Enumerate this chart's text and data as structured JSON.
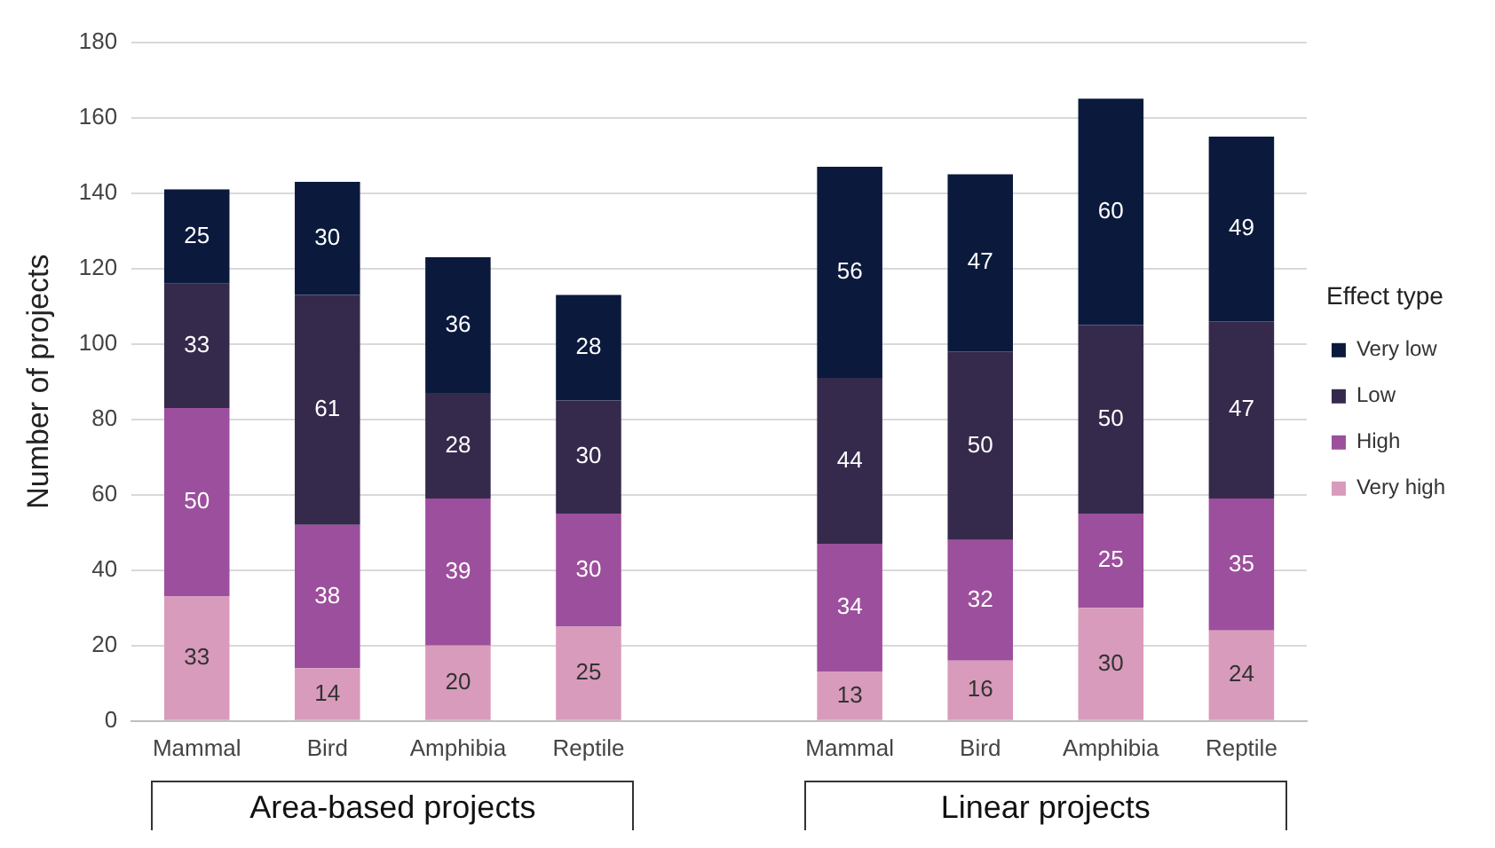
{
  "chart_data": {
    "type": "bar",
    "stacked": true,
    "ylabel": "Number of projects",
    "legend_title": "Effect type",
    "legend": "right",
    "grid": "y",
    "data_labels": true,
    "categories": [
      "Mammal",
      "Bird",
      "Amphibia",
      "Reptile",
      null,
      "Mammal",
      "Bird",
      "Amphibia",
      "Reptile"
    ],
    "ylim": [
      0,
      180
    ],
    "yticks": [
      0,
      20,
      40,
      60,
      80,
      100,
      120,
      140,
      160,
      180
    ],
    "series": [
      {
        "name": "Very high",
        "color": "#d99bbb",
        "values": [
          33,
          14,
          20,
          25,
          null,
          13,
          16,
          30,
          24
        ]
      },
      {
        "name": "High",
        "color": "#9c4f9c",
        "values": [
          50,
          38,
          39,
          30,
          null,
          34,
          32,
          25,
          35
        ]
      },
      {
        "name": "Low",
        "color": "#352a4c",
        "values": [
          33,
          61,
          28,
          30,
          null,
          44,
          50,
          50,
          47
        ]
      },
      {
        "name": "Very low",
        "color": "#0b1a3c",
        "values": [
          25,
          30,
          36,
          28,
          null,
          56,
          47,
          60,
          49
        ]
      }
    ],
    "annotations": [
      "Area-based projects",
      "Linear projects"
    ]
  }
}
